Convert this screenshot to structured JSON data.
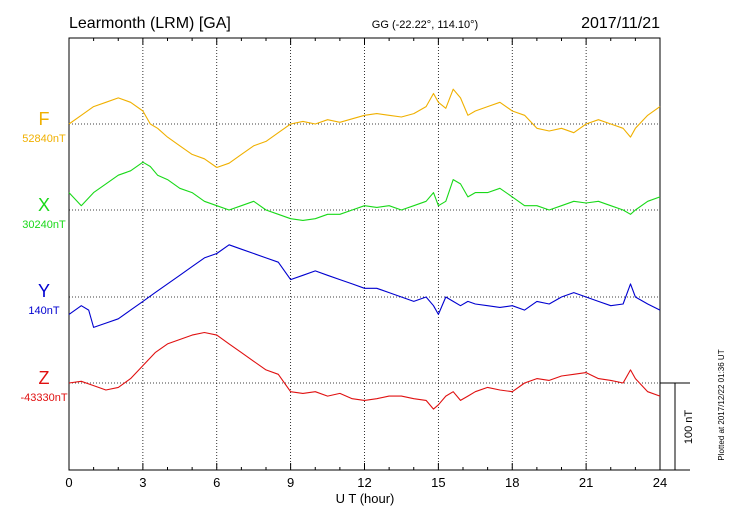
{
  "header": {
    "station": "Learmonth (LRM)  [GA]",
    "coords": "GG (-22.22°, 114.10°)",
    "date": "2017/11/21"
  },
  "footer_note": "Plotted at 2017/12/22 01:36 UT",
  "colors": {
    "F": "#f0b000",
    "X": "#19d919",
    "Y": "#0000d0",
    "Z": "#e01010",
    "axis": "#000000",
    "grid": "#000000"
  },
  "chart_data": {
    "type": "line",
    "xlabel": "U T (hour)",
    "xlim": [
      0,
      24
    ],
    "xticks": [
      "0",
      "3",
      "6",
      "9",
      "12",
      "15",
      "18",
      "21",
      "24"
    ],
    "grid": "dotted",
    "scale_bar": {
      "label": "100 nT",
      "value_nT": 100
    },
    "series": [
      {
        "name": "F",
        "baseline_label": "52840nT",
        "baseline_nT": 52840,
        "x": [
          0,
          0.5,
          1,
          1.5,
          2,
          2.5,
          3,
          3.3,
          3.6,
          4,
          4.5,
          5,
          5.5,
          6,
          6.5,
          7,
          7.5,
          8,
          8.5,
          9,
          9.5,
          10,
          10.5,
          11,
          11.5,
          12,
          12.5,
          13,
          13.5,
          14,
          14.5,
          14.8,
          15,
          15.3,
          15.6,
          15.9,
          16.2,
          16.5,
          17,
          17.5,
          18,
          18.5,
          19,
          19.5,
          20,
          20.5,
          21,
          21.5,
          22,
          22.5,
          22.8,
          23,
          23.5,
          24
        ],
        "values": [
          0,
          10,
          20,
          25,
          30,
          25,
          15,
          0,
          -5,
          -15,
          -25,
          -35,
          -40,
          -50,
          -45,
          -35,
          -25,
          -20,
          -10,
          0,
          3,
          0,
          5,
          2,
          6,
          10,
          12,
          10,
          8,
          12,
          20,
          35,
          25,
          18,
          40,
          30,
          10,
          15,
          20,
          25,
          15,
          10,
          -5,
          -8,
          -5,
          -10,
          0,
          5,
          0,
          -5,
          -15,
          -5,
          10,
          20
        ]
      },
      {
        "name": "X",
        "baseline_label": "30240nT",
        "baseline_nT": 30240,
        "x": [
          0,
          0.5,
          1,
          1.5,
          2,
          2.5,
          3,
          3.3,
          3.6,
          4,
          4.5,
          5,
          5.5,
          6,
          6.5,
          7,
          7.5,
          8,
          8.5,
          9,
          9.5,
          10,
          10.5,
          11,
          11.5,
          12,
          12.5,
          13,
          13.5,
          14,
          14.5,
          14.8,
          15,
          15.3,
          15.6,
          15.9,
          16.2,
          16.5,
          17,
          17.5,
          18,
          18.5,
          19,
          19.5,
          20,
          20.5,
          21,
          21.5,
          22,
          22.5,
          22.8,
          23,
          23.5,
          24
        ],
        "values": [
          20,
          5,
          20,
          30,
          40,
          45,
          55,
          50,
          40,
          35,
          25,
          20,
          10,
          5,
          0,
          5,
          10,
          0,
          -5,
          -10,
          -12,
          -10,
          -5,
          -5,
          0,
          5,
          3,
          5,
          0,
          5,
          10,
          20,
          5,
          10,
          35,
          30,
          15,
          20,
          20,
          25,
          15,
          5,
          5,
          0,
          5,
          10,
          8,
          10,
          5,
          0,
          -5,
          0,
          10,
          15
        ]
      },
      {
        "name": "Y",
        "baseline_label": "140nT",
        "baseline_nT": 140,
        "x": [
          0,
          0.5,
          0.8,
          1,
          1.5,
          2,
          2.5,
          3,
          3.5,
          4,
          4.5,
          5,
          5.5,
          6,
          6.5,
          7,
          7.5,
          8,
          8.5,
          9,
          9.5,
          10,
          10.5,
          11,
          11.5,
          12,
          12.5,
          13,
          13.5,
          14,
          14.5,
          14.8,
          15,
          15.3,
          15.6,
          15.9,
          16.2,
          16.5,
          17,
          17.5,
          18,
          18.5,
          19,
          19.5,
          20,
          20.5,
          21,
          21.5,
          22,
          22.5,
          22.8,
          23,
          23.5,
          24
        ],
        "values": [
          -20,
          -10,
          -15,
          -35,
          -30,
          -25,
          -15,
          -5,
          5,
          15,
          25,
          35,
          45,
          50,
          60,
          55,
          50,
          45,
          40,
          20,
          25,
          30,
          25,
          20,
          15,
          10,
          10,
          5,
          0,
          -5,
          0,
          -10,
          -20,
          0,
          -5,
          -10,
          -5,
          -8,
          -10,
          -12,
          -10,
          -15,
          -5,
          -8,
          0,
          5,
          0,
          -5,
          -10,
          -8,
          15,
          0,
          -8,
          -15
        ]
      },
      {
        "name": "Z",
        "baseline_label": "-43330nT",
        "baseline_nT": -43330,
        "x": [
          0,
          0.5,
          1,
          1.5,
          2,
          2.5,
          3,
          3.5,
          4,
          4.5,
          5,
          5.5,
          6,
          6.5,
          7,
          7.5,
          8,
          8.5,
          9,
          9.5,
          10,
          10.5,
          11,
          11.5,
          12,
          12.5,
          13,
          13.5,
          14,
          14.5,
          14.8,
          15,
          15.3,
          15.6,
          15.9,
          16.2,
          16.5,
          17,
          17.5,
          18,
          18.5,
          19,
          19.5,
          20,
          20.5,
          21,
          21.5,
          22,
          22.5,
          22.8,
          23,
          23.5,
          24
        ],
        "values": [
          0,
          2,
          -3,
          -8,
          -5,
          5,
          20,
          35,
          45,
          50,
          55,
          58,
          55,
          45,
          35,
          25,
          15,
          10,
          -10,
          -12,
          -10,
          -15,
          -12,
          -18,
          -20,
          -18,
          -15,
          -15,
          -18,
          -20,
          -30,
          -25,
          -15,
          -10,
          -20,
          -15,
          -10,
          -5,
          -8,
          -10,
          0,
          5,
          3,
          8,
          10,
          12,
          5,
          3,
          0,
          15,
          5,
          -10,
          -15
        ]
      }
    ]
  }
}
